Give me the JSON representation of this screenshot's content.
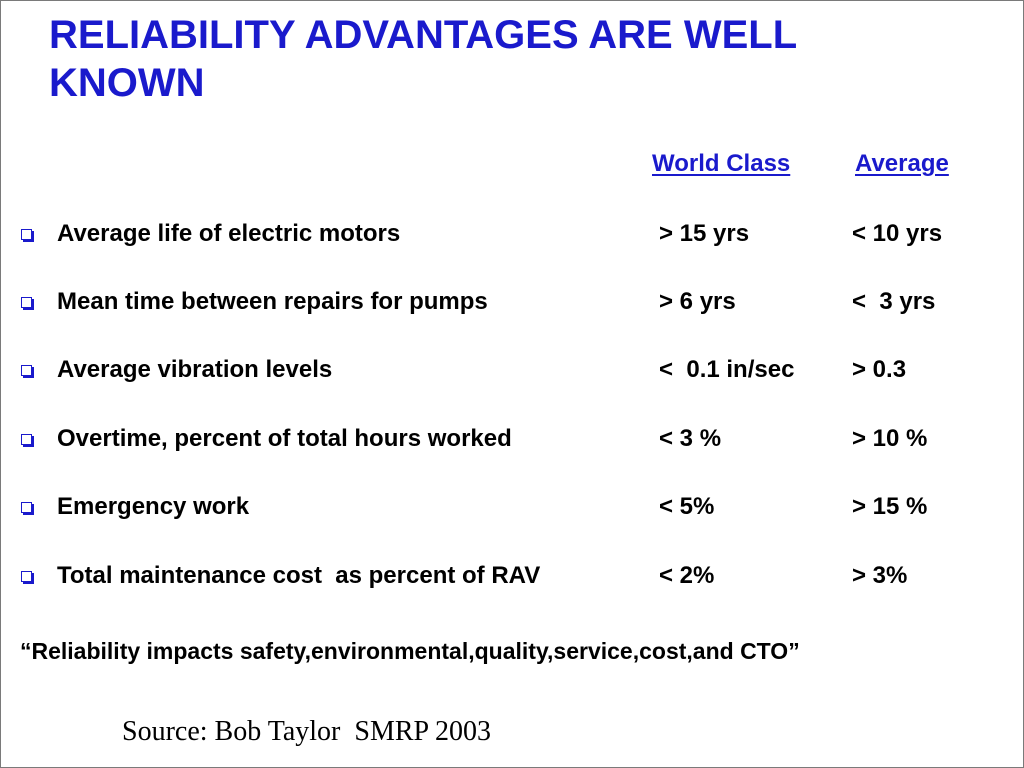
{
  "slide": {
    "title": "RELIABILITY ADVANTAGES ARE WELL KNOWN",
    "columns": {
      "world_class": "World Class",
      "average": "Average"
    },
    "rows": [
      {
        "label": "Average life of electric motors",
        "world_class": "> 15 yrs",
        "average": "< 10 yrs"
      },
      {
        "label": "Mean time between repairs for pumps",
        "world_class": "> 6 yrs",
        "average": "<  3 yrs"
      },
      {
        "label": "Average vibration levels",
        "world_class": "<  0.1 in/sec",
        "average": "> 0.3"
      },
      {
        "label": "Overtime, percent of total hours worked",
        "world_class": "< 3 %",
        "average": "> 10 %"
      },
      {
        "label": "Emergency work",
        "world_class": "< 5%",
        "average": "> 15 %"
      },
      {
        "label": "Total maintenance cost  as percent of RAV",
        "world_class": "< 2%",
        "average": "> 3%"
      }
    ],
    "quote": "“Reliability impacts safety,environmental,quality,service,cost,and CTO”",
    "source": "Source: Bob Taylor  SMRP 2003",
    "colors": {
      "title": "#1a1acc",
      "text": "#000000",
      "bullet": "#1a1acc"
    },
    "bullet_icon": "hollow-square-bullet-icon"
  }
}
